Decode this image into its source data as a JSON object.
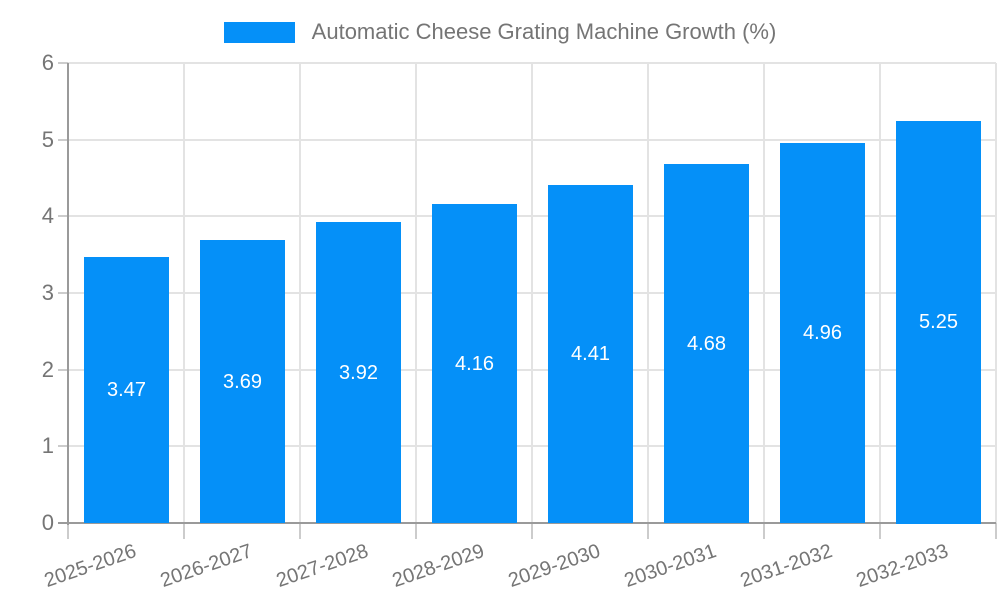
{
  "chart_data": {
    "type": "bar",
    "title": "Automatic Cheese Grating Machine Growth (%)",
    "categories": [
      "2025-2026",
      "2026-2027",
      "2027-2028",
      "2028-2029",
      "2029-2030",
      "2030-2031",
      "2031-2032",
      "2032-2033"
    ],
    "values": [
      3.47,
      3.69,
      3.92,
      4.16,
      4.41,
      4.68,
      4.96,
      5.25
    ],
    "value_labels": [
      "3.47",
      "3.69",
      "3.92",
      "4.16",
      "4.41",
      "4.68",
      "4.96",
      "5.25"
    ],
    "series_name": "Automatic Cheese Grating Machine Growth (%)",
    "xlabel": "",
    "ylabel": "",
    "ylim": [
      0,
      6
    ],
    "yticks": [
      "0",
      "1",
      "2",
      "3",
      "4",
      "5",
      "6"
    ],
    "grid": true,
    "legend_position": "top"
  },
  "colors": {
    "bar": "#0590f8",
    "bar_value_text": "#ffffff",
    "gridline": "#e3e3e3",
    "axis_line": "#9a9a9a",
    "tick_mark": "#cccccc",
    "axis_text": "#757575",
    "background": "#ffffff"
  }
}
